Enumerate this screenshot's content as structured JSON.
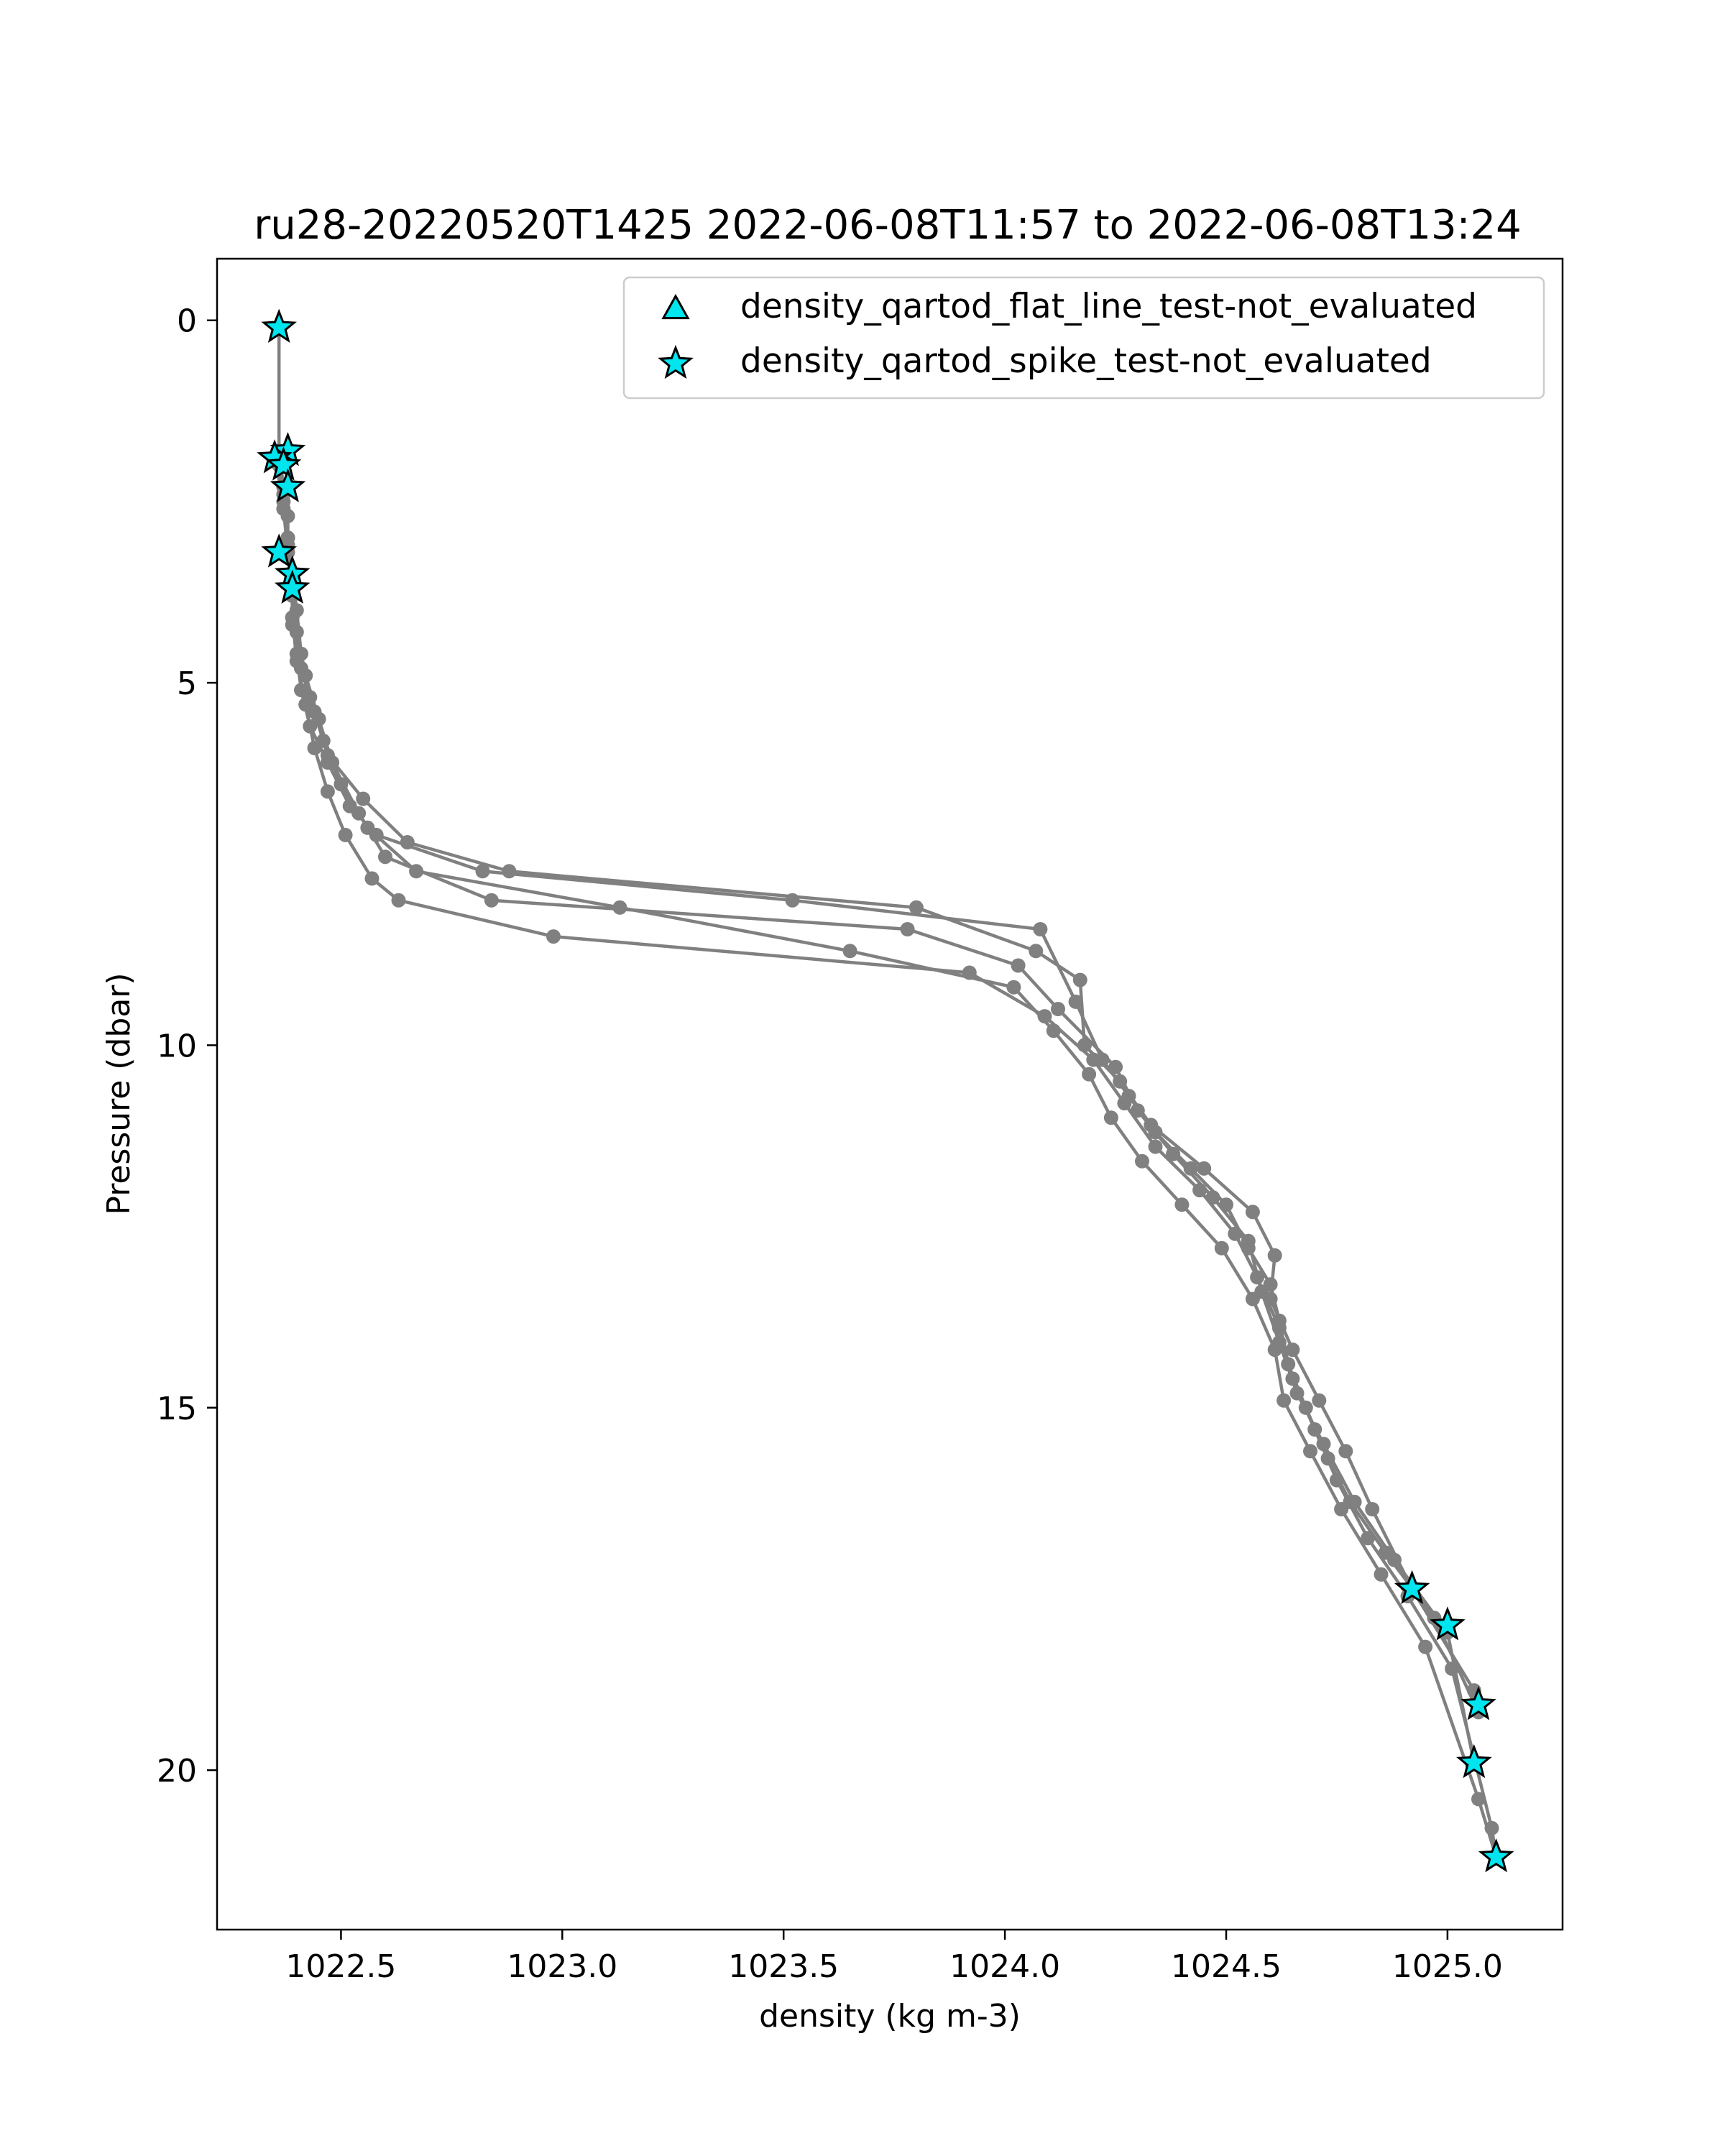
{
  "chart_data": {
    "type": "scatter",
    "title": "ru28-20220520T1425 2022-06-08T11:57 to 2022-06-08T13:24",
    "xlabel": "density (kg m-3)",
    "ylabel": "Pressure (dbar)",
    "xlim": [
      1022.22,
      1025.26
    ],
    "ylim": [
      22.2,
      -0.85
    ],
    "y_inverted": true,
    "xticks": [
      1022.5,
      1023.0,
      1023.5,
      1024.0,
      1024.5,
      1025.0
    ],
    "xtick_labels": [
      "1022.5",
      "1023.0",
      "1023.5",
      "1024.0",
      "1024.5",
      "1025.0"
    ],
    "yticks": [
      0,
      5,
      10,
      15,
      20
    ],
    "ytick_labels": [
      "0",
      "5",
      "10",
      "15",
      "20"
    ],
    "grid": false,
    "legend_position": "top-right",
    "colors": {
      "profile": "#808080",
      "flag": "#00e5ee",
      "flag_edge": "#000000"
    },
    "series": [
      {
        "x": [
          1022.36,
          1022.36,
          1022.37,
          1022.38,
          1022.38,
          1022.39,
          1022.39,
          1022.4,
          1022.41,
          1022.43,
          1022.47,
          1022.52,
          1022.58,
          1022.82,
          1023.52,
          1024.08,
          1024.16,
          1024.22,
          1024.28,
          1024.34,
          1024.42,
          1024.5,
          1024.55,
          1024.6,
          1024.62,
          1024.64,
          1024.68,
          1024.73,
          1024.78,
          1024.86,
          1024.97,
          1025.07
        ],
        "y": [
          0.1,
          1.8,
          2.3,
          2.7,
          3.1,
          3.6,
          4.1,
          4.6,
          5.1,
          5.6,
          6.1,
          6.7,
          7.1,
          7.6,
          8.0,
          8.4,
          9.4,
          10.2,
          10.7,
          11.2,
          11.7,
          12.2,
          12.8,
          13.3,
          13.8,
          14.4,
          15.0,
          15.7,
          16.3,
          17.0,
          17.9,
          19.2
        ]
      },
      {
        "x": [
          1022.35,
          1022.37,
          1022.38,
          1022.39,
          1022.39,
          1022.41,
          1022.44,
          1022.47,
          1022.55,
          1022.65,
          1022.88,
          1023.8,
          1024.07,
          1024.17,
          1024.18,
          1024.26,
          1024.33,
          1024.45,
          1024.56,
          1024.61,
          1024.6,
          1024.65,
          1024.71,
          1024.77,
          1024.83,
          1024.92,
          1025.06
        ],
        "y": [
          1.9,
          2.5,
          3.0,
          3.6,
          4.2,
          4.8,
          5.4,
          6.0,
          6.6,
          7.2,
          7.6,
          8.1,
          8.7,
          9.1,
          10.0,
          10.5,
          11.1,
          11.7,
          12.3,
          12.9,
          13.5,
          14.2,
          14.9,
          15.6,
          16.4,
          17.5,
          18.9
        ]
      },
      {
        "x": [
          1022.36,
          1022.37,
          1022.38,
          1022.39,
          1022.4,
          1022.42,
          1022.45,
          1022.48,
          1022.54,
          1022.6,
          1022.84,
          1023.78,
          1024.03,
          1024.12,
          1024.25,
          1024.3,
          1024.38,
          1024.47,
          1024.55,
          1024.58,
          1024.62,
          1024.66,
          1024.72,
          1024.79,
          1024.88,
          1025.0,
          1025.06
        ],
        "y": [
          2.0,
          2.6,
          3.2,
          3.8,
          4.3,
          4.9,
          5.5,
          6.1,
          6.8,
          7.4,
          8.0,
          8.4,
          8.9,
          9.5,
          10.3,
          10.9,
          11.5,
          12.1,
          12.7,
          13.4,
          14.1,
          14.8,
          15.5,
          16.3,
          17.1,
          18.1,
          19.9
        ]
      },
      {
        "x": [
          1022.37,
          1022.38,
          1022.39,
          1022.4,
          1022.41,
          1022.43,
          1022.46,
          1022.5,
          1022.56,
          1022.67,
          1023.13,
          1023.65,
          1024.02,
          1024.11,
          1024.19,
          1024.24,
          1024.31,
          1024.4,
          1024.49,
          1024.56,
          1024.61,
          1024.63,
          1024.69,
          1024.76,
          1024.85,
          1024.95,
          1025.07,
          1025.11
        ],
        "y": [
          2.4,
          3.0,
          3.5,
          4.0,
          4.6,
          5.2,
          5.8,
          6.4,
          7.0,
          7.6,
          8.1,
          8.7,
          9.2,
          9.8,
          10.4,
          11.0,
          11.6,
          12.2,
          12.8,
          13.5,
          14.2,
          14.9,
          15.6,
          16.4,
          17.3,
          18.3,
          20.4,
          21.2
        ]
      },
      {
        "x": [
          1022.38,
          1022.39,
          1022.39,
          1022.4,
          1022.42,
          1022.44,
          1022.47,
          1022.51,
          1022.57,
          1022.63,
          1022.98,
          1023.92,
          1024.09,
          1024.2,
          1024.27,
          1024.34,
          1024.44,
          1024.52,
          1024.57,
          1024.62,
          1024.65,
          1024.7,
          1024.75,
          1024.82,
          1024.91,
          1025.01,
          1025.1,
          1025.11
        ],
        "y": [
          3.0,
          3.6,
          4.1,
          4.7,
          5.3,
          5.9,
          6.5,
          7.1,
          7.7,
          8.0,
          8.5,
          9.0,
          9.6,
          10.2,
          10.8,
          11.4,
          12.0,
          12.6,
          13.2,
          13.9,
          14.6,
          15.3,
          16.0,
          16.8,
          17.6,
          18.6,
          20.8,
          21.2
        ]
      }
    ],
    "flags": [
      {
        "name": "density_qartod_flat_line_test-not_evaluated",
        "marker": "triangle",
        "x": [],
        "y": []
      },
      {
        "name": "density_qartod_spike_test-not_evaluated",
        "marker": "star",
        "x": [
          1022.36,
          1022.38,
          1022.35,
          1022.37,
          1022.38,
          1022.36,
          1022.39,
          1022.39,
          1024.92,
          1025.0,
          1025.07,
          1025.06,
          1025.11
        ],
        "y": [
          0.1,
          1.8,
          1.9,
          2.0,
          2.3,
          3.2,
          3.5,
          3.7,
          17.5,
          18.0,
          19.1,
          19.9,
          21.2
        ]
      }
    ]
  }
}
